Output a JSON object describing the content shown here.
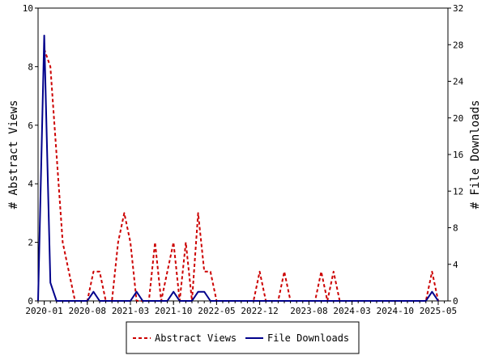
{
  "chart_data": {
    "type": "line",
    "title": "",
    "x_ticks": [
      "2020-01",
      "2020-08",
      "2021-03",
      "2021-10",
      "2022-05",
      "2022-12",
      "2023-08",
      "2024-03",
      "2024-10",
      "2025-05"
    ],
    "x_range": [
      "2019-12",
      "2025-06"
    ],
    "y_left": {
      "label": "# Abstract Views",
      "min": 0,
      "max": 10,
      "ticks": [
        0,
        2,
        4,
        6,
        8,
        10
      ]
    },
    "y_right": {
      "label": "# File Downloads",
      "min": 0,
      "max": 32,
      "ticks": [
        0,
        4,
        8,
        12,
        16,
        20,
        24,
        28,
        32
      ]
    },
    "legend_position": "bottom",
    "grid": false,
    "series": [
      {
        "name": "Abstract Views",
        "axis": "left",
        "color": "#cc0000",
        "style": "dashed",
        "points": [
          [
            "2020-01",
            8.6
          ],
          [
            "2020-02",
            8.0
          ],
          [
            "2020-03",
            5.0
          ],
          [
            "2020-04",
            2.0
          ],
          [
            "2020-05",
            1.0
          ],
          [
            "2020-06",
            0
          ],
          [
            "2020-07",
            0
          ],
          [
            "2020-08",
            0
          ],
          [
            "2020-09",
            1.0
          ],
          [
            "2020-10",
            1.0
          ],
          [
            "2020-11",
            0
          ],
          [
            "2020-12",
            0
          ],
          [
            "2021-01",
            2.0
          ],
          [
            "2021-02",
            3.0
          ],
          [
            "2021-03",
            2.0
          ],
          [
            "2021-04",
            0
          ],
          [
            "2021-05",
            0
          ],
          [
            "2021-06",
            0
          ],
          [
            "2021-07",
            2.0
          ],
          [
            "2021-08",
            0
          ],
          [
            "2021-09",
            1.0
          ],
          [
            "2021-10",
            2.0
          ],
          [
            "2021-11",
            0
          ],
          [
            "2021-12",
            2.0
          ],
          [
            "2022-01",
            0
          ],
          [
            "2022-02",
            3.0
          ],
          [
            "2022-03",
            1.0
          ],
          [
            "2022-04",
            1.0
          ],
          [
            "2022-05",
            0
          ],
          [
            "2022-06",
            0
          ],
          [
            "2022-07",
            0
          ],
          [
            "2022-08",
            0
          ],
          [
            "2022-09",
            0
          ],
          [
            "2022-10",
            0
          ],
          [
            "2022-11",
            0
          ],
          [
            "2022-12",
            1.0
          ],
          [
            "2023-01",
            0
          ],
          [
            "2023-02",
            0
          ],
          [
            "2023-03",
            0
          ],
          [
            "2023-04",
            1.0
          ],
          [
            "2023-05",
            0
          ],
          [
            "2023-06",
            0
          ],
          [
            "2023-07",
            0
          ],
          [
            "2023-08",
            0
          ],
          [
            "2023-09",
            0
          ],
          [
            "2023-10",
            1.0
          ],
          [
            "2023-11",
            0
          ],
          [
            "2023-12",
            1.0
          ],
          [
            "2024-01",
            0
          ],
          [
            "2024-02",
            0
          ],
          [
            "2024-03",
            0
          ],
          [
            "2024-04",
            0
          ],
          [
            "2024-05",
            0
          ],
          [
            "2024-06",
            0
          ],
          [
            "2024-07",
            0
          ],
          [
            "2024-08",
            0
          ],
          [
            "2024-09",
            0
          ],
          [
            "2024-10",
            0
          ],
          [
            "2024-11",
            0
          ],
          [
            "2024-12",
            0
          ],
          [
            "2025-01",
            0
          ],
          [
            "2025-02",
            0
          ],
          [
            "2025-03",
            0
          ],
          [
            "2025-04",
            1.0
          ],
          [
            "2025-05",
            0
          ]
        ]
      },
      {
        "name": "File Downloads",
        "axis": "right",
        "color": "#00008b",
        "style": "solid",
        "points": [
          [
            "2019-12",
            0
          ],
          [
            "2020-01",
            29
          ],
          [
            "2020-02",
            2
          ],
          [
            "2020-03",
            0
          ],
          [
            "2020-04",
            0
          ],
          [
            "2020-05",
            0
          ],
          [
            "2020-06",
            0
          ],
          [
            "2020-07",
            0
          ],
          [
            "2020-08",
            0
          ],
          [
            "2020-09",
            1
          ],
          [
            "2020-10",
            0
          ],
          [
            "2020-11",
            0
          ],
          [
            "2020-12",
            0
          ],
          [
            "2021-01",
            0
          ],
          [
            "2021-02",
            0
          ],
          [
            "2021-03",
            0
          ],
          [
            "2021-04",
            1
          ],
          [
            "2021-05",
            0
          ],
          [
            "2021-06",
            0
          ],
          [
            "2021-07",
            0
          ],
          [
            "2021-08",
            0
          ],
          [
            "2021-09",
            0
          ],
          [
            "2021-10",
            1
          ],
          [
            "2021-11",
            0
          ],
          [
            "2021-12",
            0
          ],
          [
            "2022-01",
            0
          ],
          [
            "2022-02",
            1
          ],
          [
            "2022-03",
            1
          ],
          [
            "2022-04",
            0
          ],
          [
            "2022-05",
            0
          ],
          [
            "2024-12",
            0
          ],
          [
            "2025-03",
            0
          ],
          [
            "2025-04",
            1
          ],
          [
            "2025-05",
            0
          ]
        ]
      }
    ]
  }
}
